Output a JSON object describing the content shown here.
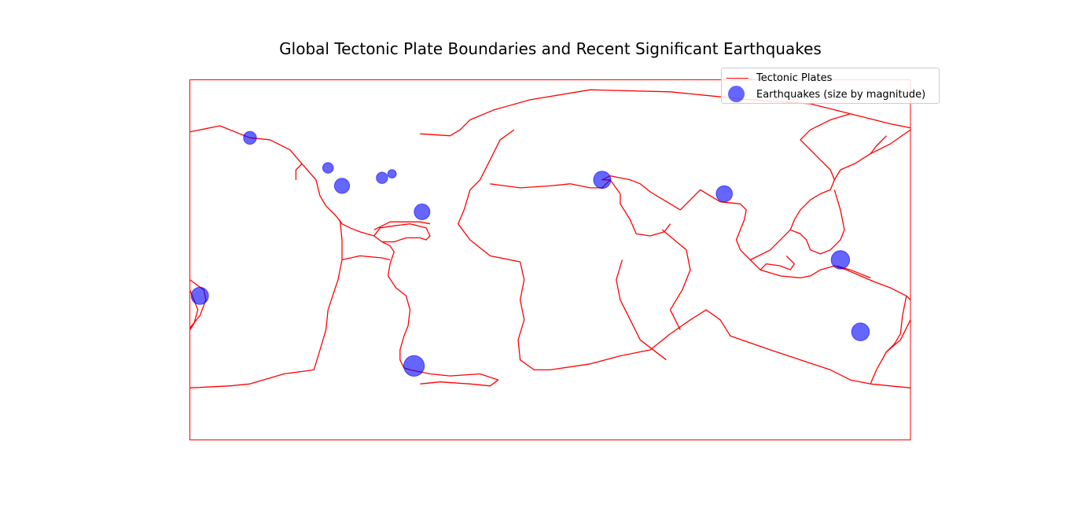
{
  "title": "Global Tectonic Plate Boundaries and Recent Significant Earthquakes",
  "colors": {
    "plates": "#ff0000",
    "quakes": "#0000ff",
    "frame": "#ff0000"
  },
  "legend": {
    "placement": "top-right",
    "items": [
      {
        "label": "Tectonic Plates",
        "kind": "line",
        "color": "#ff0000"
      },
      {
        "label": "Earthquakes (size by magnitude)",
        "kind": "marker",
        "color": "#0000ff"
      }
    ]
  },
  "chart_data": {
    "type": "scatter",
    "title": "Global Tectonic Plate Boundaries and Recent Significant Earthquakes",
    "xlabel": "",
    "ylabel": "",
    "axes_visible": false,
    "xlim": [
      -180,
      180
    ],
    "ylim": [
      -90,
      90
    ],
    "projection": "equirectangular",
    "series": [
      {
        "name": "Earthquakes (size by magnitude)",
        "points": [
          {
            "lon": -150,
            "lat": 61,
            "mag": 7.2
          },
          {
            "lon": -111,
            "lat": 46,
            "mag": 6.8
          },
          {
            "lon": -104,
            "lat": 37,
            "mag": 7.6
          },
          {
            "lon": -84,
            "lat": 41,
            "mag": 6.9
          },
          {
            "lon": -79,
            "lat": 43,
            "mag": 6.4
          },
          {
            "lon": -64,
            "lat": 24,
            "mag": 7.7
          },
          {
            "lon": -175,
            "lat": -18,
            "mag": 8.0
          },
          {
            "lon": -68,
            "lat": -53,
            "mag": 8.6
          },
          {
            "lon": 26,
            "lat": 40,
            "mag": 8.0
          },
          {
            "lon": 87,
            "lat": 33,
            "mag": 7.8
          },
          {
            "lon": 145,
            "lat": 0,
            "mag": 8.2
          },
          {
            "lon": 155,
            "lat": -36,
            "mag": 8.1
          }
        ]
      }
    ],
    "boundaries": [
      [
        [
          -180,
          64
        ],
        [
          -165,
          67
        ],
        [
          -150,
          61
        ],
        [
          -140,
          60
        ],
        [
          -130,
          55
        ],
        [
          -124,
          48
        ],
        [
          -117,
          40
        ],
        [
          -115,
          32
        ],
        [
          -112,
          27
        ],
        [
          -107,
          22
        ],
        [
          -104,
          18
        ],
        [
          -100,
          16
        ],
        [
          -95,
          14
        ],
        [
          -88,
          12
        ],
        [
          -84,
          9
        ]
      ],
      [
        [
          -124,
          48
        ],
        [
          -127,
          45
        ],
        [
          -127,
          40
        ]
      ],
      [
        [
          -105,
          20
        ],
        [
          -104,
          10
        ],
        [
          -104,
          0
        ],
        [
          -106,
          -10
        ],
        [
          -111,
          -25
        ],
        [
          -112,
          -35
        ],
        [
          -115,
          -45
        ],
        [
          -118,
          -55
        ],
        [
          -133,
          -57
        ],
        [
          -150,
          -62
        ],
        [
          -160,
          -63
        ],
        [
          -180,
          -64
        ]
      ],
      [
        [
          -104,
          0
        ],
        [
          -95,
          2
        ],
        [
          -84,
          1
        ],
        [
          -80,
          0
        ]
      ],
      [
        [
          -84,
          9
        ],
        [
          -80,
          7
        ],
        [
          -78,
          4
        ],
        [
          -80,
          -2
        ],
        [
          -81,
          -8
        ],
        [
          -77,
          -14
        ],
        [
          -72,
          -18
        ],
        [
          -70,
          -25
        ],
        [
          -71,
          -33
        ],
        [
          -73,
          -38
        ],
        [
          -75,
          -45
        ],
        [
          -75,
          -50
        ],
        [
          -73,
          -54
        ],
        [
          -70,
          -55
        ],
        [
          -60,
          -57
        ],
        [
          -50,
          -58
        ],
        [
          -35,
          -57
        ],
        [
          -26,
          -60
        ],
        [
          -30,
          -63
        ],
        [
          -40,
          -62
        ],
        [
          -55,
          -61
        ],
        [
          -65,
          -62
        ]
      ],
      [
        [
          -88,
          12
        ],
        [
          -85,
          16
        ],
        [
          -78,
          17
        ],
        [
          -70,
          18
        ],
        [
          -62,
          16
        ],
        [
          -60,
          12
        ],
        [
          -62,
          10
        ],
        [
          -65,
          11
        ],
        [
          -72,
          11
        ],
        [
          -78,
          9
        ],
        [
          -84,
          9
        ]
      ],
      [
        [
          -88,
          15
        ],
        [
          -80,
          19
        ],
        [
          -65,
          19
        ],
        [
          -60,
          18
        ]
      ],
      [
        [
          -65,
          63
        ],
        [
          -50,
          62
        ],
        [
          -45,
          65
        ],
        [
          -40,
          70
        ],
        [
          -28,
          75
        ],
        [
          -10,
          80
        ],
        [
          20,
          85
        ],
        [
          60,
          84
        ],
        [
          100,
          80
        ],
        [
          130,
          78
        ],
        [
          150,
          73
        ],
        [
          170,
          68
        ],
        [
          180,
          66
        ]
      ],
      [
        [
          -18,
          65
        ],
        [
          -25,
          60
        ],
        [
          -30,
          50
        ],
        [
          -35,
          40
        ],
        [
          -40,
          35
        ],
        [
          -43,
          25
        ],
        [
          -46,
          18
        ],
        [
          -40,
          10
        ],
        [
          -30,
          2
        ],
        [
          -15,
          -1
        ],
        [
          -13,
          -10
        ],
        [
          -15,
          -20
        ],
        [
          -13,
          -30
        ],
        [
          -16,
          -40
        ],
        [
          -15,
          -50
        ],
        [
          -8,
          -55
        ],
        [
          0,
          -55
        ],
        [
          20,
          -52
        ],
        [
          35,
          -48
        ],
        [
          50,
          -45
        ],
        [
          60,
          -37
        ],
        [
          70,
          -30
        ],
        [
          78,
          -25
        ],
        [
          85,
          -30
        ],
        [
          90,
          -38
        ],
        [
          110,
          -45
        ],
        [
          125,
          -50
        ],
        [
          140,
          -55
        ],
        [
          150,
          -60
        ],
        [
          160,
          -62
        ],
        [
          170,
          -63
        ],
        [
          180,
          -64
        ]
      ],
      [
        [
          -30,
          38
        ],
        [
          -15,
          36
        ],
        [
          0,
          37
        ],
        [
          10,
          38
        ],
        [
          20,
          36
        ],
        [
          26,
          36
        ],
        [
          30,
          40
        ],
        [
          26,
          40
        ],
        [
          30,
          42
        ],
        [
          40,
          40
        ],
        [
          45,
          38
        ],
        [
          50,
          34
        ],
        [
          60,
          28
        ],
        [
          65,
          25
        ],
        [
          70,
          30
        ],
        [
          75,
          35
        ],
        [
          80,
          32
        ],
        [
          85,
          29
        ],
        [
          95,
          28
        ],
        [
          98,
          25
        ],
        [
          97,
          20
        ],
        [
          95,
          15
        ],
        [
          93,
          10
        ],
        [
          95,
          5
        ],
        [
          100,
          0
        ],
        [
          105,
          -5
        ],
        [
          115,
          -8
        ],
        [
          125,
          -9
        ],
        [
          130,
          -8
        ],
        [
          135,
          -5
        ],
        [
          142,
          -3
        ],
        [
          148,
          -5
        ],
        [
          155,
          -8
        ],
        [
          162,
          -11
        ],
        [
          170,
          -14
        ],
        [
          178,
          -18
        ],
        [
          180,
          -20
        ]
      ],
      [
        [
          30,
          40
        ],
        [
          35,
          33
        ],
        [
          35,
          28
        ],
        [
          40,
          20
        ],
        [
          43,
          13
        ],
        [
          50,
          12
        ],
        [
          57,
          14
        ],
        [
          60,
          18
        ]
      ],
      [
        [
          36,
          0
        ],
        [
          33,
          -10
        ],
        [
          35,
          -20
        ],
        [
          40,
          -30
        ],
        [
          45,
          -40
        ],
        [
          58,
          -50
        ]
      ],
      [
        [
          56,
          15
        ],
        [
          62,
          10
        ],
        [
          68,
          5
        ],
        [
          70,
          -5
        ],
        [
          66,
          -15
        ],
        [
          60,
          -25
        ],
        [
          65,
          -35
        ]
      ],
      [
        [
          100,
          0
        ],
        [
          110,
          5
        ],
        [
          115,
          10
        ],
        [
          120,
          15
        ],
        [
          122,
          20
        ],
        [
          125,
          25
        ],
        [
          130,
          30
        ],
        [
          135,
          33
        ],
        [
          140,
          35
        ],
        [
          142,
          40
        ],
        [
          145,
          45
        ],
        [
          152,
          48
        ],
        [
          160,
          53
        ],
        [
          163,
          57
        ],
        [
          168,
          62
        ]
      ],
      [
        [
          142,
          40
        ],
        [
          140,
          45
        ],
        [
          135,
          50
        ],
        [
          130,
          55
        ],
        [
          125,
          60
        ],
        [
          130,
          65
        ],
        [
          140,
          70
        ],
        [
          150,
          73
        ]
      ],
      [
        [
          120,
          15
        ],
        [
          125,
          13
        ],
        [
          128,
          10
        ],
        [
          130,
          5
        ],
        [
          135,
          3
        ],
        [
          140,
          5
        ],
        [
          145,
          10
        ],
        [
          147,
          15
        ],
        [
          145,
          25
        ],
        [
          142,
          35
        ]
      ],
      [
        [
          143,
          -3
        ],
        [
          150,
          -5
        ],
        [
          155,
          -7
        ],
        [
          160,
          -9
        ]
      ],
      [
        [
          178,
          -18
        ],
        [
          176,
          -28
        ],
        [
          175,
          -37
        ],
        [
          172,
          -42
        ],
        [
          168,
          -46
        ],
        [
          163,
          -55
        ],
        [
          160,
          -62
        ]
      ],
      [
        [
          168,
          -46
        ],
        [
          175,
          -40
        ],
        [
          180,
          -30
        ]
      ],
      [
        [
          160,
          53
        ],
        [
          170,
          58
        ],
        [
          180,
          65
        ]
      ],
      [
        [
          -180,
          -15
        ],
        [
          -178,
          -20
        ],
        [
          -176,
          -25
        ],
        [
          -178,
          -32
        ],
        [
          -180,
          -35
        ]
      ],
      [
        [
          -180,
          -10
        ],
        [
          -173,
          -15
        ],
        [
          -172,
          -20
        ],
        [
          -175,
          -28
        ],
        [
          -180,
          -34
        ]
      ],
      [
        [
          105,
          -5
        ],
        [
          108,
          -2
        ],
        [
          115,
          -3
        ],
        [
          120,
          -5
        ],
        [
          122,
          -2
        ],
        [
          118,
          2
        ]
      ]
    ]
  }
}
